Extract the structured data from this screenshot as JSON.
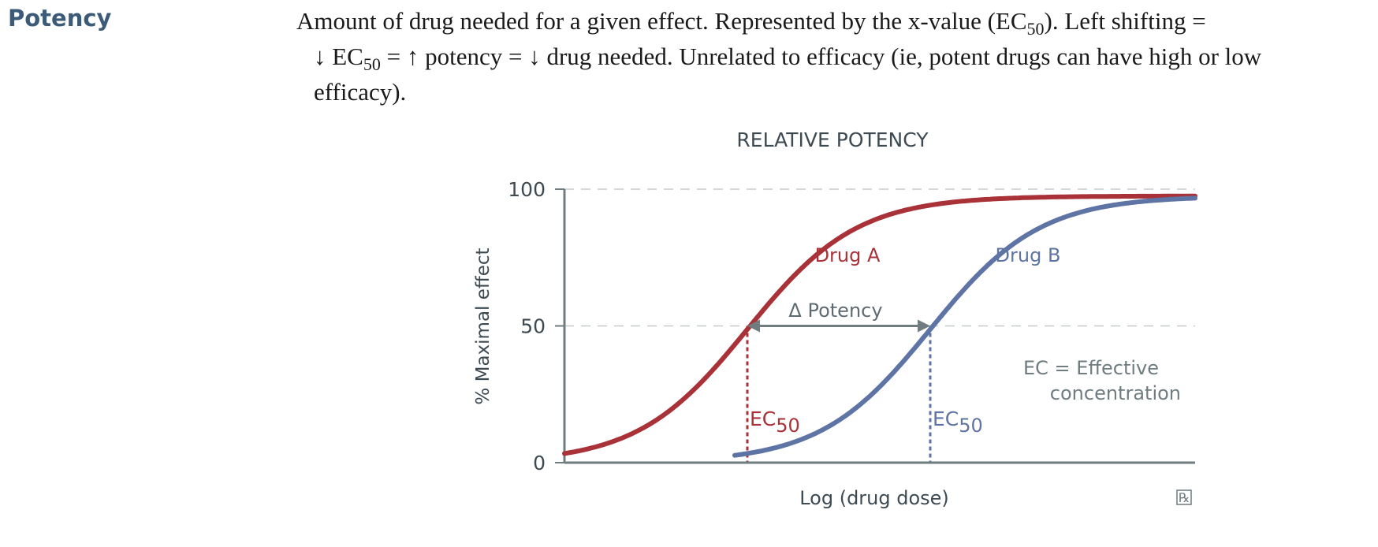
{
  "entry": {
    "term": "Potency",
    "desc_line1_pre": "Amount of drug needed for a given effect. Represented by the x-value (EC",
    "desc_line1_sub": "50",
    "desc_line1_post": "). Left shifting =",
    "desc_line2_a": "↓ EC",
    "desc_line2_sub": "50",
    "desc_line2_b": " = ↑ potency = ↓ drug needed. Unrelated to efficacy (ie, potent drugs can have high or low",
    "desc_line3": "efficacy)."
  },
  "chart_data": {
    "type": "line",
    "title": "RELATIVE POTENCY",
    "xlabel": "Log (drug dose)",
    "ylabel": "% Maximal effect",
    "ylim": [
      0,
      100
    ],
    "yticks": [
      0,
      50,
      100
    ],
    "xlim": [
      0,
      10
    ],
    "grid": "dashed at 50 and 100",
    "series": [
      {
        "name": "Drug A",
        "color": "#a83238",
        "ec50": 2.9,
        "hill": 1.15,
        "x_start": 0,
        "x_end": 10
      },
      {
        "name": "Drug B",
        "color": "#5d74a4",
        "ec50": 5.8,
        "hill": 1.15,
        "x_start": 2.7,
        "x_end": 10
      }
    ],
    "annotations": {
      "delta_label": "Δ Potency",
      "ec_label_main": "EC",
      "ec_label_sub": "50",
      "legend_line1": "EC = Effective",
      "legend_line2": "concentration",
      "logo": "℞"
    },
    "colors": {
      "axis": "#6f7c80",
      "grid": "#c6cbcd",
      "text": "#3e4a52",
      "arrow": "#6f7c80"
    }
  }
}
